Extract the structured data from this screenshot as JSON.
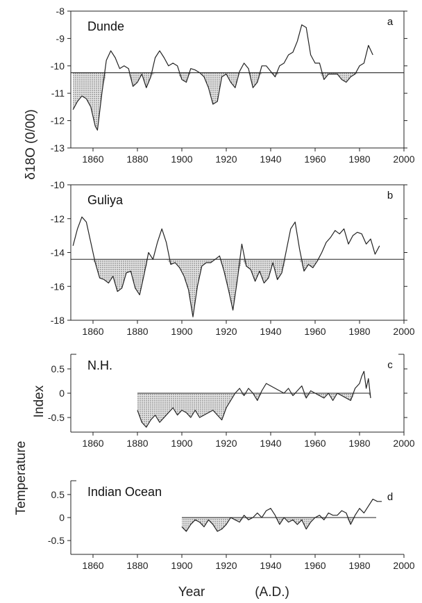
{
  "x_axis": {
    "label": "Year",
    "unit": "(A.D.)"
  },
  "left_labels": {
    "oxygen": "δ18O (0/00)",
    "temperature": "Temperature",
    "index": "Index"
  },
  "chart_data": [
    {
      "type": "line",
      "panel": "a",
      "title": "Dunde",
      "ylabel": "δ18O (0/00)",
      "xlim": [
        1850,
        2000
      ],
      "ylim": [
        -13,
        -8
      ],
      "xticks": [
        1860,
        1880,
        1900,
        1920,
        1940,
        1960,
        1980,
        2000
      ],
      "yticks": [
        -13,
        -12,
        -11,
        -10,
        -9,
        -8
      ],
      "reference_line": -10.25,
      "shading": "stippled below reference line",
      "series": [
        {
          "x": [
            1851,
            1853,
            1855,
            1857,
            1859,
            1861,
            1862,
            1864,
            1866,
            1868,
            1870,
            1872,
            1874,
            1876,
            1878,
            1880,
            1882,
            1884,
            1886,
            1888,
            1890,
            1892,
            1894,
            1896,
            1898,
            1900,
            1902,
            1904,
            1906,
            1908,
            1910,
            1912,
            1914,
            1916,
            1918,
            1920,
            1922,
            1924,
            1926,
            1928,
            1930,
            1932,
            1934,
            1936,
            1938,
            1940,
            1942,
            1944,
            1946,
            1948,
            1950,
            1952,
            1954,
            1956,
            1958,
            1960,
            1962,
            1964,
            1966,
            1968,
            1970,
            1972,
            1974,
            1976,
            1978,
            1980,
            1982,
            1984,
            1986
          ],
          "values": [
            -11.6,
            -11.3,
            -11.1,
            -11.2,
            -11.5,
            -12.2,
            -12.35,
            -11.0,
            -9.8,
            -9.45,
            -9.7,
            -10.1,
            -10.0,
            -10.1,
            -10.75,
            -10.6,
            -10.3,
            -10.8,
            -10.4,
            -9.7,
            -9.45,
            -9.7,
            -10.0,
            -9.9,
            -10.0,
            -10.5,
            -10.6,
            -10.1,
            -10.15,
            -10.25,
            -10.4,
            -10.8,
            -11.4,
            -11.3,
            -10.4,
            -10.3,
            -10.6,
            -10.8,
            -10.2,
            -9.9,
            -10.1,
            -10.8,
            -10.6,
            -10.0,
            -10.0,
            -10.2,
            -10.4,
            -10.0,
            -9.9,
            -9.6,
            -9.5,
            -9.1,
            -8.5,
            -8.6,
            -9.6,
            -9.9,
            -9.9,
            -10.5,
            -10.3,
            -10.3,
            -10.3,
            -10.5,
            -10.6,
            -10.4,
            -10.3,
            -10.0,
            -9.9,
            -9.25,
            -9.6
          ]
        }
      ]
    },
    {
      "type": "line",
      "panel": "b",
      "title": "Guliya",
      "ylabel": "δ18O (0/00)",
      "xlim": [
        1850,
        2000
      ],
      "ylim": [
        -18,
        -10
      ],
      "xticks": [
        1860,
        1880,
        1900,
        1920,
        1940,
        1960,
        1980,
        2000
      ],
      "yticks": [
        -18,
        -16,
        -14,
        -12,
        -10
      ],
      "reference_line": -14.4,
      "shading": "stippled below reference line",
      "series": [
        {
          "x": [
            1851,
            1853,
            1855,
            1857,
            1859,
            1861,
            1863,
            1865,
            1867,
            1869,
            1871,
            1873,
            1875,
            1877,
            1879,
            1881,
            1883,
            1885,
            1887,
            1889,
            1891,
            1893,
            1895,
            1897,
            1899,
            1901,
            1903,
            1905,
            1907,
            1909,
            1911,
            1913,
            1915,
            1917,
            1919,
            1921,
            1923,
            1925,
            1927,
            1929,
            1931,
            1933,
            1935,
            1937,
            1939,
            1941,
            1943,
            1945,
            1947,
            1949,
            1951,
            1953,
            1955,
            1957,
            1959,
            1961,
            1963,
            1965,
            1967,
            1969,
            1971,
            1973,
            1975,
            1977,
            1979,
            1981,
            1983,
            1985,
            1987,
            1989
          ],
          "values": [
            -13.6,
            -12.6,
            -11.9,
            -12.2,
            -13.4,
            -14.6,
            -15.5,
            -15.6,
            -15.8,
            -15.4,
            -16.3,
            -16.1,
            -15.2,
            -15.1,
            -16.1,
            -16.5,
            -15.3,
            -14.0,
            -14.4,
            -13.4,
            -12.6,
            -13.4,
            -14.7,
            -14.6,
            -14.9,
            -15.4,
            -16.2,
            -17.8,
            -16.0,
            -14.8,
            -14.6,
            -14.6,
            -14.4,
            -14.2,
            -15.1,
            -16.2,
            -17.4,
            -15.6,
            -13.5,
            -14.8,
            -15.0,
            -15.7,
            -15.1,
            -15.8,
            -15.5,
            -14.6,
            -15.6,
            -15.2,
            -13.9,
            -12.6,
            -12.2,
            -13.8,
            -15.1,
            -14.7,
            -14.9,
            -14.5,
            -14.0,
            -13.4,
            -13.1,
            -12.7,
            -12.9,
            -12.6,
            -13.5,
            -13.0,
            -12.8,
            -12.9,
            -13.5,
            -13.2,
            -14.1,
            -13.6
          ]
        }
      ]
    },
    {
      "type": "line",
      "panel": "c",
      "title": "N.H.",
      "ylabel": "Temperature Index",
      "xlim": [
        1850,
        2000
      ],
      "ylim": [
        -0.8,
        0.8
      ],
      "xticks": [
        1860,
        1880,
        1900,
        1920,
        1940,
        1960,
        1980,
        2000
      ],
      "yticks": [
        -0.5,
        0,
        0.5
      ],
      "reference_line": 0,
      "shading": "stippled below reference line",
      "series": [
        {
          "x": [
            1880,
            1882,
            1884,
            1886,
            1888,
            1890,
            1892,
            1894,
            1896,
            1898,
            1900,
            1902,
            1904,
            1906,
            1908,
            1910,
            1912,
            1914,
            1916,
            1918,
            1920,
            1922,
            1924,
            1926,
            1928,
            1930,
            1932,
            1934,
            1936,
            1938,
            1940,
            1942,
            1944,
            1946,
            1948,
            1950,
            1952,
            1954,
            1956,
            1958,
            1960,
            1962,
            1964,
            1966,
            1968,
            1970,
            1972,
            1974,
            1976,
            1978,
            1980,
            1981,
            1982,
            1983,
            1984,
            1985
          ],
          "values": [
            -0.35,
            -0.6,
            -0.7,
            -0.55,
            -0.45,
            -0.6,
            -0.5,
            -0.4,
            -0.3,
            -0.45,
            -0.35,
            -0.4,
            -0.5,
            -0.35,
            -0.5,
            -0.45,
            -0.4,
            -0.35,
            -0.45,
            -0.55,
            -0.3,
            -0.15,
            0.0,
            0.1,
            -0.05,
            0.1,
            0.0,
            -0.15,
            0.05,
            0.2,
            0.15,
            0.1,
            0.05,
            0.0,
            0.1,
            -0.05,
            0.05,
            0.15,
            -0.1,
            0.05,
            0.0,
            -0.05,
            -0.1,
            0.0,
            -0.15,
            0.0,
            -0.05,
            -0.1,
            -0.15,
            0.1,
            0.2,
            0.35,
            0.45,
            0.1,
            0.3,
            -0.1
          ]
        }
      ]
    },
    {
      "type": "line",
      "panel": "d",
      "title": "Indian  Ocean",
      "ylabel": "Temperature Index",
      "xlim": [
        1850,
        2000
      ],
      "ylim": [
        -0.8,
        0.8
      ],
      "xticks": [
        1860,
        1880,
        1900,
        1920,
        1940,
        1960,
        1980,
        2000
      ],
      "yticks": [
        -0.5,
        0,
        0.5
      ],
      "reference_line": 0,
      "shading": "stippled below reference line",
      "series": [
        {
          "x": [
            1900,
            1902,
            1904,
            1906,
            1908,
            1910,
            1912,
            1914,
            1916,
            1918,
            1920,
            1922,
            1924,
            1926,
            1928,
            1930,
            1932,
            1934,
            1936,
            1938,
            1940,
            1942,
            1944,
            1946,
            1948,
            1950,
            1952,
            1954,
            1956,
            1958,
            1960,
            1962,
            1964,
            1966,
            1968,
            1970,
            1972,
            1974,
            1976,
            1978,
            1980,
            1982,
            1984,
            1986,
            1988,
            1990
          ],
          "values": [
            -0.2,
            -0.3,
            -0.15,
            -0.05,
            -0.1,
            -0.2,
            -0.05,
            -0.15,
            -0.3,
            -0.25,
            -0.15,
            0.0,
            -0.05,
            -0.1,
            0.05,
            -0.05,
            0.0,
            0.1,
            0.0,
            0.15,
            0.2,
            0.05,
            -0.15,
            0.0,
            -0.1,
            -0.05,
            -0.15,
            -0.05,
            -0.25,
            -0.1,
            0.0,
            0.05,
            -0.05,
            0.1,
            0.05,
            0.05,
            0.15,
            0.1,
            -0.15,
            0.05,
            0.2,
            0.1,
            0.25,
            0.4,
            0.35,
            0.35
          ]
        }
      ]
    }
  ]
}
